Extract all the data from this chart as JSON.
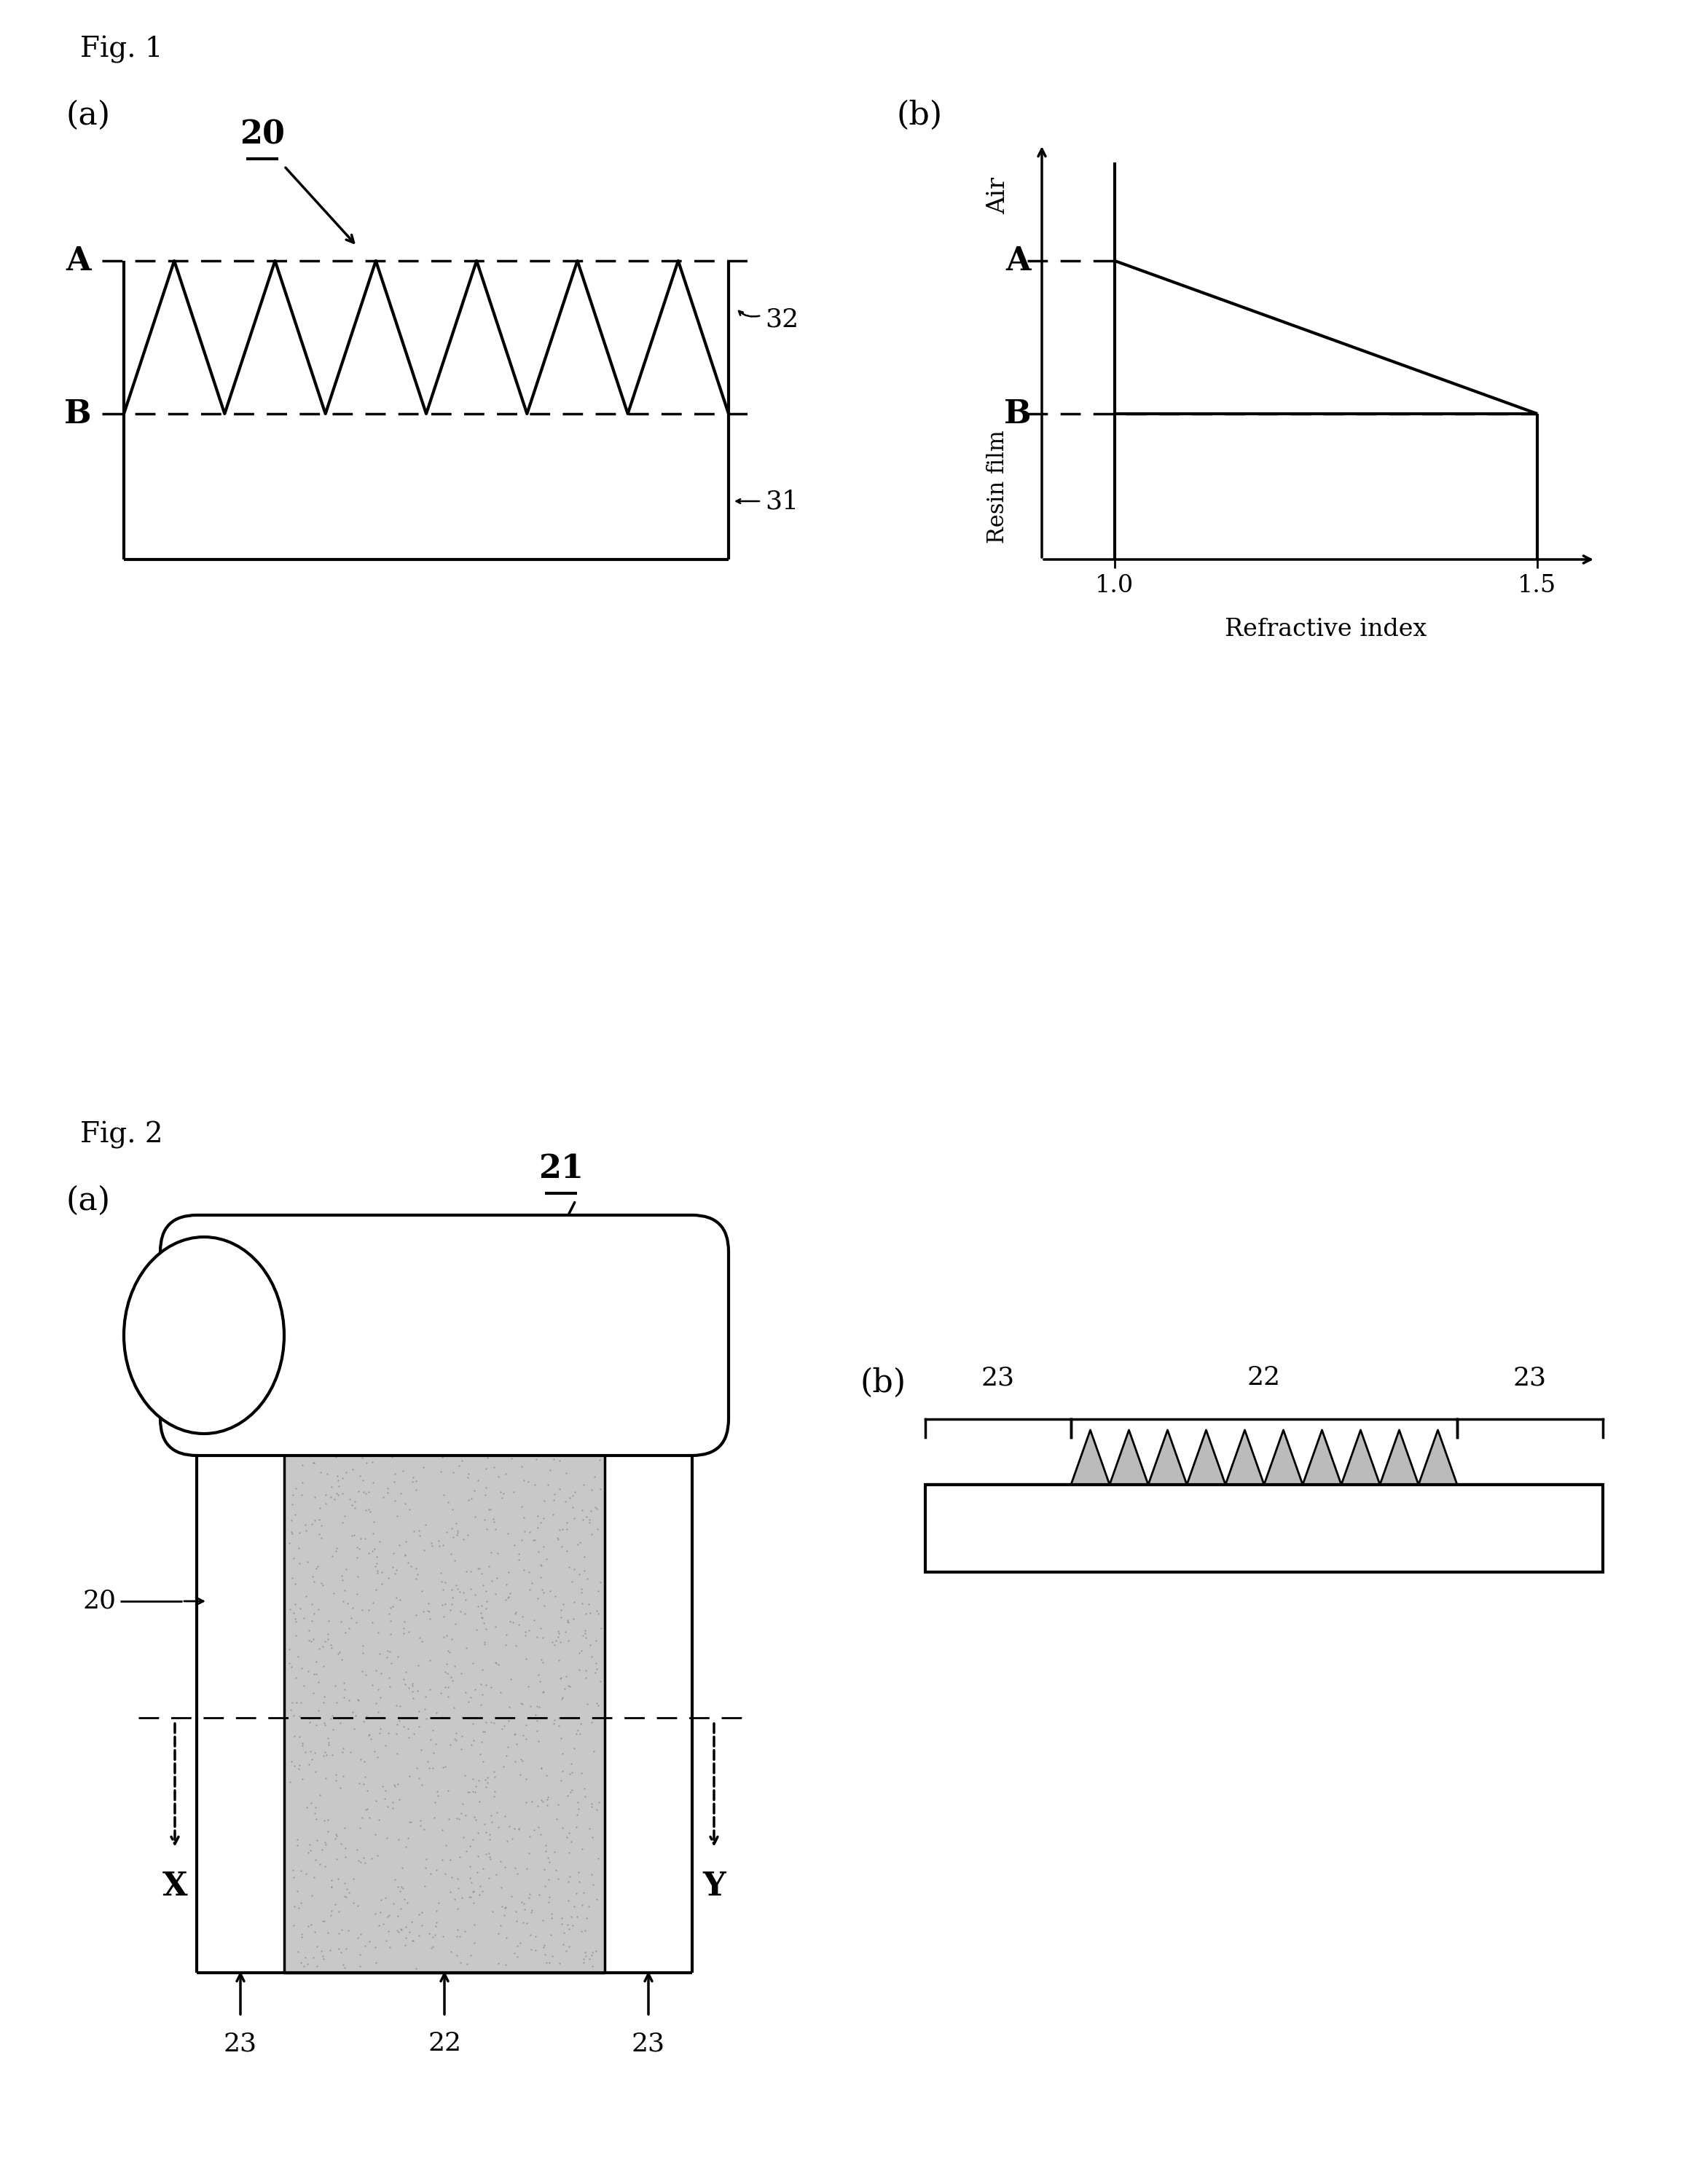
{
  "background_color": "#ffffff",
  "fig1_label": "Fig. 1",
  "fig2_label": "Fig. 2",
  "fig1a_label": "(a)",
  "fig1b_label": "(b)",
  "fig2a_label": "(a)",
  "fig2b_label": "(b)",
  "label_20_fig1": "20",
  "label_32": "32",
  "label_31": "31",
  "label_21": "21",
  "label_20_fig2": "20",
  "label_22_bottom": "22",
  "label_23_left_bottom": "23",
  "label_23_right_bottom": "23",
  "label_22_b": "22",
  "label_23_b_left": "23",
  "label_23_b_right": "23",
  "label_X": "X",
  "label_Y": "Y",
  "label_Air": "Air",
  "label_Resin_film": "Resin film",
  "label_Refractive_index": "Refractive index",
  "label_A": "A",
  "label_B": "B",
  "label_10": "1.0",
  "label_15": "1.5",
  "label_plus": "+",
  "font_size_fig": 28,
  "font_size_panel": 32,
  "font_size_ref": 26,
  "font_size_axis": 24,
  "line_width": 2.5,
  "line_color": "#000000"
}
